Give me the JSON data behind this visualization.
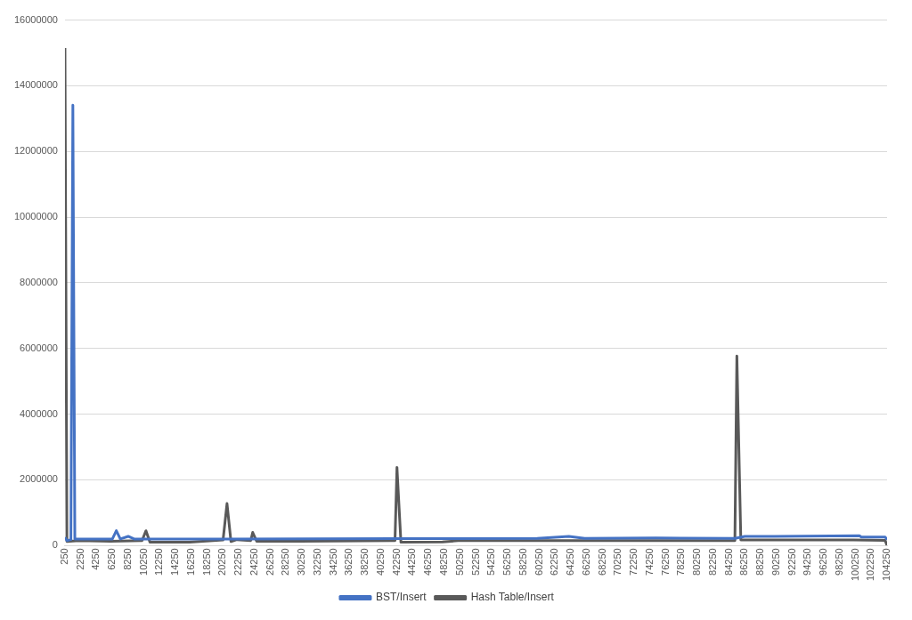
{
  "chart_data": {
    "type": "line",
    "xlim": [
      250,
      104250
    ],
    "xticks": [
      250,
      2250,
      4250,
      6250,
      8250,
      10250,
      12250,
      14250,
      16250,
      18250,
      20250,
      22250,
      24250,
      26250,
      28250,
      30250,
      32250,
      34250,
      36250,
      38250,
      40250,
      42250,
      44250,
      46250,
      48250,
      50250,
      52250,
      54250,
      56250,
      58250,
      60250,
      62250,
      64250,
      66250,
      68250,
      70250,
      72250,
      74250,
      76250,
      78250,
      80250,
      82250,
      84250,
      86250,
      88250,
      90250,
      92250,
      94250,
      96250,
      98250,
      100250,
      102250,
      104250
    ],
    "ylim": [
      0,
      16000000
    ],
    "yticks": [
      0,
      2000000,
      4000000,
      6000000,
      8000000,
      10000000,
      12000000,
      14000000,
      16000000
    ],
    "grid": "y",
    "legend": "bottom",
    "marker": "none",
    "line_style": "solid",
    "series": [
      {
        "name": "BST/Insert",
        "color": "#4472c4",
        "x": [
          250,
          500,
          1000,
          1250,
          1500,
          6250,
          6750,
          7250,
          8250,
          9000,
          20000,
          42000,
          60000,
          64000,
          66000,
          75000,
          85000,
          86250,
          90000,
          100750,
          101000,
          104000,
          104250
        ],
        "values": [
          250000,
          150000,
          180000,
          13410000,
          200000,
          200000,
          450000,
          200000,
          280000,
          200000,
          200000,
          210000,
          220000,
          280000,
          220000,
          230000,
          220000,
          280000,
          280000,
          300000,
          260000,
          260000,
          180000
        ]
      },
      {
        "name": "Hash Table/Insert",
        "color": "#595959",
        "x": [
          250,
          500,
          2000,
          6000,
          10000,
          10500,
          11000,
          16000,
          20250,
          20750,
          21250,
          22000,
          23750,
          24000,
          24500,
          30000,
          42000,
          42250,
          42750,
          48000,
          50000,
          85000,
          85250,
          85750,
          100000,
          104000,
          104250
        ],
        "values": [
          15150000,
          120000,
          150000,
          130000,
          150000,
          450000,
          100000,
          100000,
          170000,
          1280000,
          120000,
          180000,
          150000,
          400000,
          130000,
          130000,
          150000,
          2380000,
          100000,
          110000,
          150000,
          150000,
          5770000,
          170000,
          170000,
          160000,
          0
        ]
      }
    ]
  }
}
